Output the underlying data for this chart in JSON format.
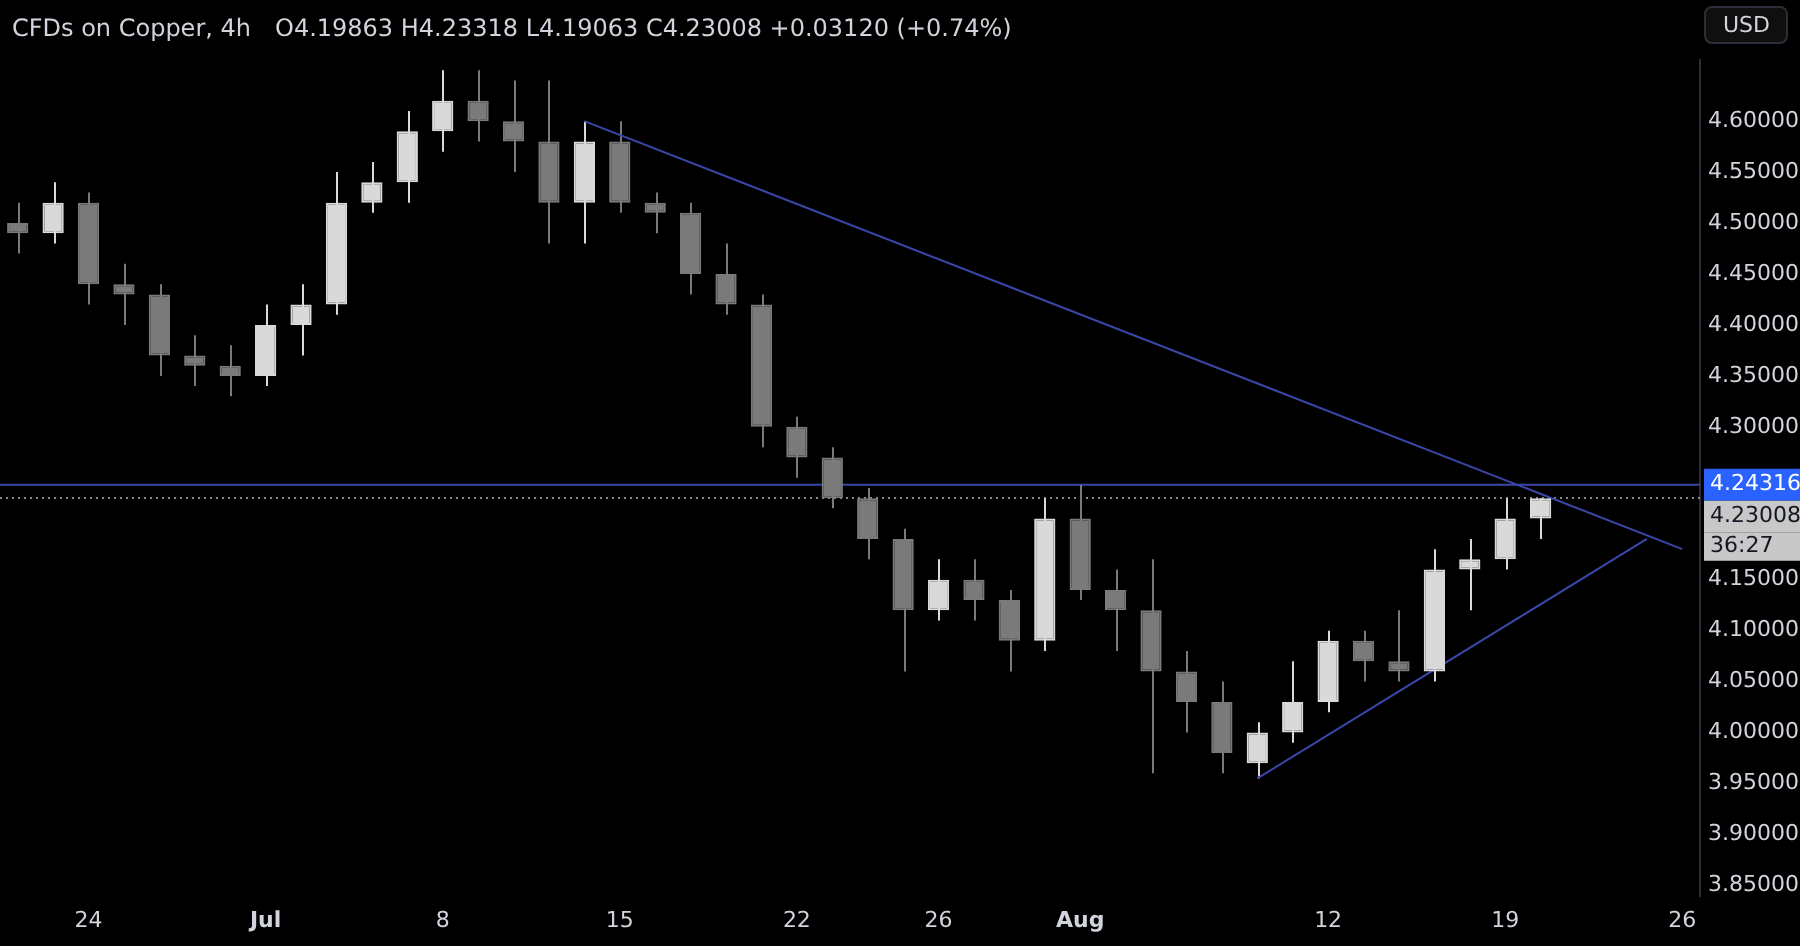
{
  "chart_data": {
    "type": "candlestick",
    "title": "CFDs on Copper, 4h",
    "subtitle": "O4.19863 H4.23318 L4.19063 C4.23008 +0.03120 (+0.74%)",
    "categories": [
      null,
      null,
      "24",
      null,
      null,
      null,
      null,
      "Jul",
      null,
      null,
      null,
      null,
      "8",
      null,
      null,
      null,
      null,
      "15",
      null,
      null,
      null,
      null,
      "22",
      null,
      null,
      null,
      "26",
      null,
      null,
      null,
      "Aug",
      null,
      null,
      null,
      null,
      null,
      null,
      "12",
      null,
      null,
      null,
      null,
      "19",
      null,
      null,
      null,
      null,
      "26"
    ],
    "colors": [
      "#7a7a7a",
      "#d9d9d9",
      "#7a7a7a",
      "#7a7a7a",
      "#7a7a7a",
      "#7a7a7a",
      "#7a7a7a",
      "#d9d9d9",
      "#d9d9d9",
      "#d9d9d9",
      "#d9d9d9",
      "#d9d9d9",
      "#d9d9d9",
      "#7a7a7a",
      "#7a7a7a",
      "#7a7a7a",
      "#d9d9d9",
      "#7a7a7a",
      "#7a7a7a",
      "#7a7a7a",
      "#7a7a7a",
      "#7a7a7a",
      "#7a7a7a",
      "#7a7a7a",
      "#7a7a7a",
      "#7a7a7a",
      "#d9d9d9",
      "#7a7a7a",
      "#7a7a7a",
      "#d9d9d9",
      "#7a7a7a",
      "#7a7a7a",
      "#7a7a7a",
      "#7a7a7a",
      "#7a7a7a",
      "#d9d9d9",
      "#d9d9d9",
      "#d9d9d9",
      "#7a7a7a",
      "#7a7a7a",
      "#d9d9d9",
      "#d9d9d9",
      "#d9d9d9",
      "#d9d9d9",
      null,
      null,
      null,
      null
    ],
    "ohlc": [
      [
        4.5,
        4.52,
        4.47,
        4.49
      ],
      [
        4.49,
        4.54,
        4.48,
        4.52
      ],
      [
        4.52,
        4.53,
        4.42,
        4.44
      ],
      [
        4.44,
        4.46,
        4.4,
        4.43
      ],
      [
        4.43,
        4.44,
        4.35,
        4.37
      ],
      [
        4.37,
        4.39,
        4.34,
        4.36
      ],
      [
        4.36,
        4.38,
        4.33,
        4.35
      ],
      [
        4.35,
        4.42,
        4.34,
        4.4
      ],
      [
        4.4,
        4.44,
        4.37,
        4.42
      ],
      [
        4.42,
        4.55,
        4.41,
        4.52
      ],
      [
        4.52,
        4.56,
        4.51,
        4.54
      ],
      [
        4.54,
        4.61,
        4.52,
        4.59
      ],
      [
        4.59,
        4.65,
        4.57,
        4.62
      ],
      [
        4.62,
        4.65,
        4.58,
        4.6
      ],
      [
        4.6,
        4.64,
        4.55,
        4.58
      ],
      [
        4.58,
        4.64,
        4.48,
        4.52
      ],
      [
        4.52,
        4.6,
        4.48,
        4.58
      ],
      [
        4.58,
        4.6,
        4.51,
        4.52
      ],
      [
        4.52,
        4.53,
        4.49,
        4.51
      ],
      [
        4.51,
        4.52,
        4.43,
        4.45
      ],
      [
        4.45,
        4.48,
        4.41,
        4.42
      ],
      [
        4.42,
        4.43,
        4.28,
        4.3
      ],
      [
        4.3,
        4.31,
        4.25,
        4.27
      ],
      [
        4.27,
        4.28,
        4.22,
        4.23
      ],
      [
        4.23,
        4.24,
        4.17,
        4.19
      ],
      [
        4.19,
        4.2,
        4.06,
        4.12
      ],
      [
        4.12,
        4.17,
        4.11,
        4.15
      ],
      [
        4.15,
        4.17,
        4.11,
        4.13
      ],
      [
        4.13,
        4.14,
        4.06,
        4.09
      ],
      [
        4.09,
        4.23,
        4.08,
        4.21
      ],
      [
        4.21,
        4.243,
        4.13,
        4.14
      ],
      [
        4.14,
        4.16,
        4.08,
        4.12
      ],
      [
        4.12,
        4.17,
        3.96,
        4.06
      ],
      [
        4.06,
        4.08,
        4.0,
        4.03
      ],
      [
        4.03,
        4.05,
        3.96,
        3.98
      ],
      [
        3.97,
        4.01,
        3.955,
        4.0
      ],
      [
        4.0,
        4.07,
        3.99,
        4.03
      ],
      [
        4.03,
        4.1,
        4.02,
        4.09
      ],
      [
        4.09,
        4.1,
        4.05,
        4.07
      ],
      [
        4.07,
        4.12,
        4.05,
        4.06
      ],
      [
        4.06,
        4.18,
        4.05,
        4.16
      ],
      [
        4.16,
        4.19,
        4.12,
        4.17
      ],
      [
        4.17,
        4.23,
        4.16,
        4.21
      ],
      [
        4.21,
        4.23,
        4.19,
        4.23
      ],
      null,
      null,
      null,
      null
    ],
    "series": [
      {
        "type": "line",
        "color": "#3a47a8",
        "values": [
          null,
          null,
          null,
          null,
          null,
          null,
          null,
          null,
          null,
          null,
          null,
          null,
          null,
          null,
          null,
          null,
          4.6,
          null,
          null,
          null,
          null,
          null,
          null,
          null,
          null,
          null,
          null,
          null,
          null,
          null,
          null,
          null,
          null,
          null,
          null,
          null,
          null,
          null,
          null,
          null,
          null,
          null,
          null,
          null,
          null,
          null,
          null,
          4.18
        ]
      },
      {
        "type": "line",
        "color": "#3a47a8",
        "values": [
          null,
          null,
          null,
          null,
          null,
          null,
          null,
          null,
          null,
          null,
          null,
          null,
          null,
          null,
          null,
          null,
          null,
          null,
          null,
          null,
          null,
          null,
          null,
          null,
          null,
          null,
          null,
          null,
          null,
          null,
          null,
          null,
          null,
          null,
          null,
          3.955,
          null,
          null,
          null,
          null,
          null,
          null,
          null,
          null,
          null,
          null,
          4.19,
          null
        ]
      }
    ],
    "ref_lines": [
      {
        "axis": "y",
        "value": 4.24316,
        "label": "4.24316",
        "color": "#3a47a8",
        "line_style": "solid"
      },
      {
        "axis": "y",
        "value": 4.23008,
        "label": "4.23008",
        "color": "#8a8a8a",
        "line_style": "dotted"
      }
    ],
    "annotations": [
      "36:27",
      "USD"
    ],
    "ylim": [
      3.84,
      4.66
    ],
    "yticks": [
      {
        "value": 3.85,
        "label": "3.85000"
      },
      {
        "value": 3.9,
        "label": "3.90000"
      },
      {
        "value": 3.95,
        "label": "3.95000"
      },
      {
        "value": 4.0,
        "label": "4.00000"
      },
      {
        "value": 4.05,
        "label": "4.05000"
      },
      {
        "value": 4.1,
        "label": "4.10000"
      },
      {
        "value": 4.15,
        "label": "4.15000"
      },
      {
        "value": 4.3,
        "label": "4.30000"
      },
      {
        "value": 4.35,
        "label": "4.35000"
      },
      {
        "value": 4.4,
        "label": "4.40000"
      },
      {
        "value": 4.45,
        "label": "4.45000"
      },
      {
        "value": 4.5,
        "label": "4.50000"
      },
      {
        "value": 4.55,
        "label": "4.55000"
      },
      {
        "value": 4.6,
        "label": "4.60000"
      }
    ]
  }
}
